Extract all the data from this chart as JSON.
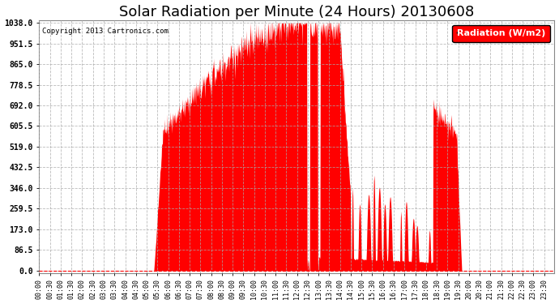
{
  "title": "Solar Radiation per Minute (24 Hours) 20130608",
  "copyright_text": "Copyright 2013 Cartronics.com",
  "legend_label": "Radiation (W/m2)",
  "background_color": "#ffffff",
  "plot_bg_color": "#ffffff",
  "grid_color": "#aaaaaa",
  "area_color": "#ff0000",
  "yticks": [
    0.0,
    86.5,
    173.0,
    259.5,
    346.0,
    432.5,
    519.0,
    605.5,
    692.0,
    778.5,
    865.0,
    951.5,
    1038.0
  ],
  "ymin": 0.0,
  "ymax": 1038.0,
  "title_fontsize": 13,
  "tick_fontsize": 7,
  "copyright_fontsize": 6.5,
  "legend_fontsize": 8
}
